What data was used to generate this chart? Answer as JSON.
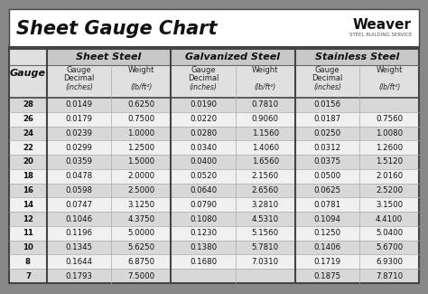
{
  "title": "Sheet Gauge Chart",
  "bg_outer": "#888888",
  "bg_white": "#ffffff",
  "bg_title": "#ffffff",
  "header_dark": "#c8c8c8",
  "header_light": "#e0e0e0",
  "row_odd": "#d8d8d8",
  "row_even": "#f0f0f0",
  "gauges": [
    28,
    26,
    24,
    22,
    20,
    18,
    16,
    14,
    12,
    11,
    10,
    8,
    7
  ],
  "sheet_steel_dec": [
    "0.0149",
    "0.0179",
    "0.0239",
    "0.0299",
    "0.0359",
    "0.0478",
    "0.0598",
    "0.0747",
    "0.1046",
    "0.1196",
    "0.1345",
    "0.1644",
    "0.1793"
  ],
  "sheet_steel_wt": [
    "0.6250",
    "0.7500",
    "1.0000",
    "1.2500",
    "1.5000",
    "2.0000",
    "2.5000",
    "3.1250",
    "4.3750",
    "5.0000",
    "5.6250",
    "6.8750",
    "7.5000"
  ],
  "galv_dec": [
    "0.0190",
    "0.0220",
    "0.0280",
    "0.0340",
    "0.0400",
    "0.0520",
    "0.0640",
    "0.0790",
    "0.1080",
    "0.1230",
    "0.1380",
    "0.1680",
    ""
  ],
  "galv_wt": [
    "0.7810",
    "0.9060",
    "1.1560",
    "1.4060",
    "1.6560",
    "2.1560",
    "2.6560",
    "3.2810",
    "4.5310",
    "5.1560",
    "5.7810",
    "7.0310",
    ""
  ],
  "ss_dec": [
    "0.0156",
    "0.0187",
    "0.0250",
    "0.0312",
    "0.0375",
    "0.0500",
    "0.0625",
    "0.0781",
    "0.1094",
    "0.1250",
    "0.1406",
    "0.1719",
    "0.1875"
  ],
  "ss_wt": [
    "",
    "0.7560",
    "1.0080",
    "1.2600",
    "1.5120",
    "2.0160",
    "2.5200",
    "3.1500",
    "4.4100",
    "5.0400",
    "5.6700",
    "6.9300",
    "7.8710"
  ]
}
